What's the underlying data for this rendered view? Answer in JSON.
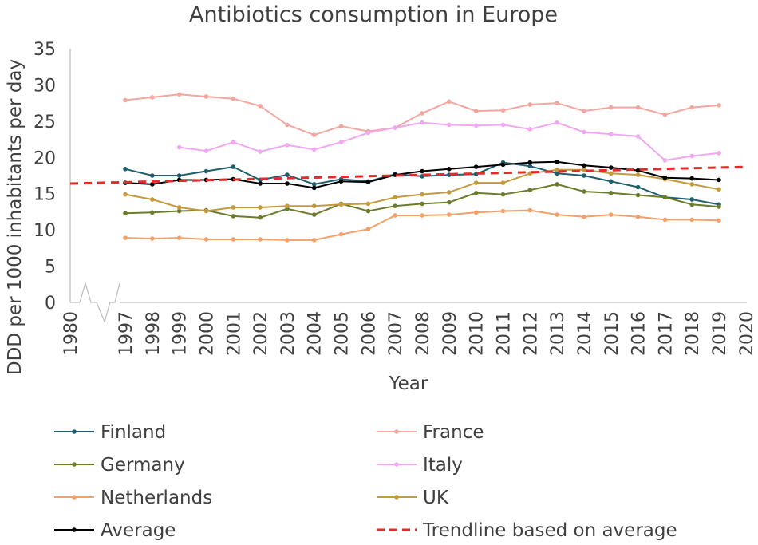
{
  "chart_data": {
    "type": "line",
    "title": "Antibiotics consumption in Europe",
    "xlabel": "Year",
    "ylabel": "DDD per 1000 inhabitants per day",
    "ylim": [
      0,
      35
    ],
    "yticks": [
      0,
      5,
      10,
      15,
      20,
      25,
      30,
      35
    ],
    "x_ticks": [
      "1980",
      "1997",
      "1998",
      "1999",
      "2000",
      "2001",
      "2002",
      "2003",
      "2004",
      "2005",
      "2006",
      "2007",
      "2008",
      "2009",
      "2010",
      "2011",
      "2012",
      "2013",
      "2014",
      "2015",
      "2016",
      "2017",
      "2018",
      "2019",
      "2020"
    ],
    "axis_break": "between 1980 and 1997",
    "legend_position": "bottom",
    "series": [
      {
        "name": "Finland",
        "color": "#1f5e6e",
        "style": "solid",
        "x": [
          1997,
          1998,
          1999,
          2000,
          2001,
          2002,
          2003,
          2004,
          2005,
          2006,
          2007,
          2008,
          2009,
          2010,
          2011,
          2012,
          2013,
          2014,
          2015,
          2016,
          2017,
          2018,
          2019
        ],
        "values": [
          18.4,
          17.5,
          17.5,
          18.1,
          18.7,
          16.9,
          17.6,
          16.3,
          17.0,
          16.7,
          17.7,
          17.4,
          17.6,
          17.7,
          19.3,
          18.8,
          17.8,
          17.5,
          16.7,
          15.9,
          14.5,
          14.2,
          13.5
        ]
      },
      {
        "name": "France",
        "color": "#f4a6a0",
        "style": "solid",
        "x": [
          1997,
          1998,
          1999,
          2000,
          2001,
          2002,
          2003,
          2004,
          2005,
          2006,
          2007,
          2008,
          2009,
          2010,
          2011,
          2012,
          2013,
          2014,
          2015,
          2016,
          2017,
          2018,
          2019
        ],
        "values": [
          27.9,
          28.3,
          28.7,
          28.4,
          28.1,
          27.1,
          24.5,
          23.1,
          24.3,
          23.6,
          24.1,
          26.1,
          27.7,
          26.4,
          26.5,
          27.3,
          27.5,
          26.4,
          26.9,
          26.9,
          25.9,
          26.9,
          27.2
        ]
      },
      {
        "name": "Germany",
        "color": "#6b7d2a",
        "style": "solid",
        "x": [
          1997,
          1998,
          1999,
          2000,
          2001,
          2002,
          2003,
          2004,
          2005,
          2006,
          2007,
          2008,
          2009,
          2010,
          2011,
          2012,
          2013,
          2014,
          2015,
          2016,
          2017,
          2018,
          2019
        ],
        "values": [
          12.3,
          12.4,
          12.6,
          12.7,
          11.9,
          11.7,
          12.9,
          12.1,
          13.6,
          12.6,
          13.3,
          13.6,
          13.8,
          15.1,
          14.9,
          15.5,
          16.3,
          15.3,
          15.1,
          14.8,
          14.5,
          13.5,
          13.2
        ]
      },
      {
        "name": "Italy",
        "color": "#f0a8f0",
        "style": "solid",
        "x": [
          1999,
          2000,
          2001,
          2002,
          2003,
          2004,
          2005,
          2006,
          2007,
          2008,
          2009,
          2010,
          2011,
          2012,
          2013,
          2014,
          2015,
          2016,
          2017,
          2018,
          2019
        ],
        "values": [
          21.4,
          20.9,
          22.1,
          20.8,
          21.7,
          21.1,
          22.1,
          23.4,
          24.1,
          24.8,
          24.5,
          24.4,
          24.5,
          23.9,
          24.8,
          23.5,
          23.2,
          22.9,
          19.6,
          20.2,
          20.6
        ]
      },
      {
        "name": "Netherlands",
        "color": "#f2a16a",
        "style": "solid",
        "x": [
          1997,
          1998,
          1999,
          2000,
          2001,
          2002,
          2003,
          2004,
          2005,
          2006,
          2007,
          2008,
          2009,
          2010,
          2011,
          2012,
          2013,
          2014,
          2015,
          2016,
          2017,
          2018,
          2019
        ],
        "values": [
          8.9,
          8.8,
          8.9,
          8.7,
          8.7,
          8.7,
          8.6,
          8.6,
          9.4,
          10.1,
          12.0,
          12.0,
          12.1,
          12.4,
          12.6,
          12.7,
          12.1,
          11.8,
          12.1,
          11.8,
          11.4,
          11.4,
          11.3
        ]
      },
      {
        "name": "UK",
        "color": "#c49a3c",
        "style": "solid",
        "x": [
          1997,
          1998,
          1999,
          2000,
          2001,
          2002,
          2003,
          2004,
          2005,
          2006,
          2007,
          2008,
          2009,
          2010,
          2011,
          2012,
          2013,
          2014,
          2015,
          2016,
          2017,
          2018,
          2019
        ],
        "values": [
          14.9,
          14.2,
          13.1,
          12.6,
          13.1,
          13.1,
          13.3,
          13.3,
          13.5,
          13.6,
          14.5,
          14.9,
          15.2,
          16.5,
          16.5,
          17.8,
          18.3,
          18.3,
          17.8,
          17.6,
          17.0,
          16.3,
          15.6
        ]
      },
      {
        "name": "Average",
        "color": "#000000",
        "style": "solid",
        "x": [
          1997,
          1998,
          1999,
          2000,
          2001,
          2002,
          2003,
          2004,
          2005,
          2006,
          2007,
          2008,
          2009,
          2010,
          2011,
          2012,
          2013,
          2014,
          2015,
          2016,
          2017,
          2018,
          2019
        ],
        "values": [
          16.5,
          16.3,
          16.9,
          16.9,
          17.0,
          16.4,
          16.4,
          15.8,
          16.7,
          16.6,
          17.6,
          18.1,
          18.4,
          18.7,
          19.0,
          19.3,
          19.4,
          18.9,
          18.6,
          18.2,
          17.2,
          17.1,
          16.9
        ]
      },
      {
        "name": "Trendline based on average",
        "color": "#e32b2b",
        "style": "dashed",
        "x": [
          1980,
          2020
        ],
        "values": [
          16.4,
          18.7
        ]
      }
    ]
  }
}
